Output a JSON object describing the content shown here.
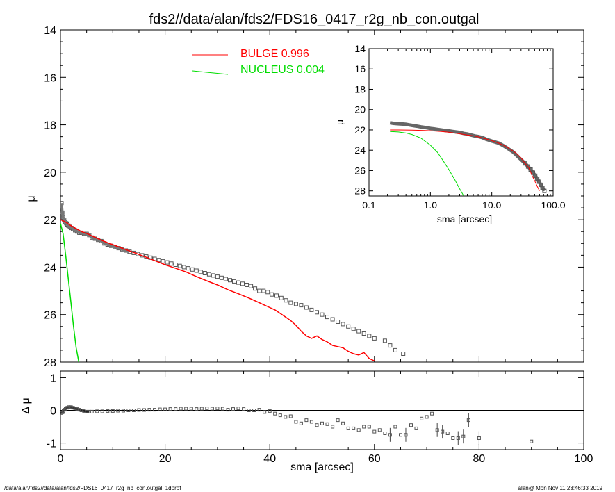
{
  "title": "fds2//data/alan/fds2/FDS16_0417_r2g_nb_con.outgal",
  "footer": {
    "left": "/data/alan/fds2//data/alan/fds2/FDS16_0417_r2g_nb_con.outgal_1dprof",
    "right": "alan@  Mon Nov 11 23:46:33 2019"
  },
  "colors": {
    "bulge": "#ff0000",
    "nucleus": "#00dd00",
    "data": "#555555",
    "axes": "#000000"
  },
  "legend": [
    {
      "label": "BULGE",
      "value": "0.996",
      "color": "#ff0000"
    },
    {
      "label": "NUCLEUS",
      "value": "0.004",
      "color": "#00dd00"
    }
  ],
  "chart_data": [
    {
      "id": "main",
      "type": "scatter",
      "xlabel": "",
      "ylabel": "μ",
      "xlim": [
        0,
        100
      ],
      "ylim": [
        28,
        14
      ],
      "yticks": [
        14,
        16,
        18,
        20,
        22,
        24,
        26,
        28
      ],
      "observed": {
        "x": [
          0.2,
          0.35,
          0.5,
          0.7,
          0.9,
          1.1,
          1.3,
          1.5,
          1.8,
          2.1,
          2.4,
          2.8,
          3.2,
          3.6,
          4.0,
          4.5,
          5.0,
          5.5,
          6.0,
          6.6,
          7.2,
          7.8,
          8.4,
          9.0,
          9.7,
          10.4,
          11.1,
          11.8,
          12.5,
          13.2,
          14.0,
          14.8,
          15.6,
          16.4,
          17.2,
          18.0,
          18.8,
          19.6,
          20.4,
          21.2,
          22.0,
          22.8,
          23.6,
          24.4,
          25.2,
          26.0,
          26.8,
          27.6,
          28.4,
          29.2,
          30.0,
          30.8,
          31.6,
          32.4,
          33.2,
          34.0,
          34.8,
          35.6,
          36.4,
          37.2,
          38.0,
          38.8,
          39.6,
          40.4,
          41.3,
          42.2,
          43.1,
          44.0,
          45.0,
          46.0,
          47.0,
          48.0,
          49.0,
          50.0,
          51.0,
          52.0,
          53.0,
          54.0,
          55.0,
          56.0,
          57.0,
          58.0,
          59.0,
          60.0,
          62.0,
          63.0,
          64.0,
          65.5
        ],
        "y": [
          21.3,
          21.7,
          21.9,
          22.0,
          22.1,
          22.15,
          22.2,
          22.25,
          22.3,
          22.35,
          22.4,
          22.45,
          22.5,
          22.55,
          22.55,
          22.6,
          22.6,
          22.65,
          22.75,
          22.8,
          22.85,
          22.9,
          23.0,
          23.05,
          23.1,
          23.15,
          23.2,
          23.25,
          23.3,
          23.35,
          23.4,
          23.45,
          23.5,
          23.55,
          23.6,
          23.65,
          23.7,
          23.75,
          23.8,
          23.85,
          23.9,
          23.95,
          24.0,
          24.05,
          24.1,
          24.15,
          24.2,
          24.25,
          24.3,
          24.35,
          24.4,
          24.45,
          24.5,
          24.55,
          24.6,
          24.65,
          24.7,
          24.75,
          24.8,
          24.9,
          25.0,
          25.0,
          25.05,
          25.15,
          25.2,
          25.3,
          25.4,
          25.5,
          25.55,
          25.6,
          25.7,
          25.8,
          25.9,
          26.0,
          26.1,
          26.2,
          26.3,
          26.4,
          26.5,
          26.6,
          26.7,
          26.8,
          26.9,
          27.0,
          27.1,
          27.3,
          27.5,
          27.65
        ]
      },
      "bulge_model": {
        "x": [
          0,
          1,
          2,
          3,
          4,
          5,
          6,
          7,
          8,
          9,
          10,
          12,
          14,
          16,
          18,
          20,
          22,
          24,
          26,
          28,
          30,
          32,
          34,
          36,
          38,
          40,
          41,
          42,
          43,
          44,
          45,
          46,
          47,
          48,
          49,
          50,
          51,
          52,
          53,
          54,
          55,
          56,
          57,
          58,
          59,
          60
        ],
        "y": [
          22.0,
          22.1,
          22.25,
          22.38,
          22.5,
          22.58,
          22.68,
          22.78,
          22.88,
          22.97,
          23.05,
          23.22,
          23.38,
          23.55,
          23.72,
          23.9,
          24.05,
          24.2,
          24.4,
          24.58,
          24.75,
          24.95,
          25.12,
          25.3,
          25.5,
          25.7,
          25.8,
          25.95,
          26.1,
          26.25,
          26.45,
          26.7,
          26.9,
          27.0,
          26.9,
          27.05,
          27.15,
          27.3,
          27.35,
          27.4,
          27.55,
          27.65,
          27.7,
          27.6,
          27.85,
          27.95
        ]
      },
      "nucleus_model": {
        "x": [
          0,
          0.5,
          1,
          1.5,
          2,
          2.5,
          3,
          3.5
        ],
        "y": [
          22.15,
          22.6,
          23.5,
          24.5,
          25.5,
          26.5,
          27.4,
          28.0
        ]
      }
    },
    {
      "id": "residual",
      "type": "scatter",
      "xlabel": "sma [arcsec]",
      "ylabel": "Δ μ",
      "xlim": [
        0,
        100
      ],
      "ylim": [
        -1.2,
        1.2
      ],
      "xticks": [
        0,
        20,
        40,
        60,
        80,
        100
      ],
      "yticks": [
        -1,
        0,
        1
      ],
      "x": [
        0.2,
        0.4,
        0.6,
        0.8,
        1.0,
        1.3,
        1.6,
        2.0,
        2.4,
        2.8,
        3.2,
        3.6,
        4.0,
        4.5,
        5.0,
        5.5,
        6.0,
        7.0,
        8.0,
        9.0,
        10,
        11,
        12,
        13,
        14,
        15,
        16,
        17,
        18,
        19,
        20,
        21,
        22,
        23,
        24,
        25,
        26,
        27,
        28,
        29,
        30,
        31,
        32,
        33,
        34,
        35,
        36,
        37,
        38,
        39,
        40,
        41,
        42,
        43,
        44,
        45,
        46,
        47,
        48,
        49,
        50,
        51,
        52,
        53,
        54,
        55,
        56,
        57,
        58,
        59,
        60,
        61,
        62,
        63,
        64,
        65,
        66,
        67,
        68,
        69,
        70,
        71,
        72,
        73,
        74,
        75,
        76,
        77,
        78,
        80,
        90
      ],
      "y": [
        -0.08,
        -0.06,
        -0.02,
        0.02,
        0.05,
        0.08,
        0.1,
        0.1,
        0.08,
        0.06,
        0.04,
        0.02,
        0.0,
        -0.02,
        -0.04,
        -0.04,
        -0.04,
        -0.03,
        -0.03,
        -0.02,
        -0.02,
        -0.01,
        -0.01,
        0.0,
        0.0,
        0.01,
        0.01,
        0.02,
        0.02,
        0.03,
        0.03,
        0.04,
        0.04,
        0.05,
        0.05,
        0.05,
        0.04,
        0.05,
        0.06,
        0.05,
        0.06,
        0.05,
        0.02,
        0.04,
        0.06,
        0.04,
        0.0,
        0.0,
        0.02,
        -0.05,
        -0.02,
        -0.1,
        -0.15,
        -0.2,
        -0.18,
        -0.35,
        -0.4,
        -0.3,
        -0.35,
        -0.45,
        -0.4,
        -0.42,
        -0.5,
        -0.3,
        -0.4,
        -0.55,
        -0.55,
        -0.6,
        -0.5,
        -0.5,
        -0.65,
        -0.6,
        -0.7,
        -0.75,
        -0.5,
        -0.75,
        -0.75,
        -0.45,
        -0.55,
        -0.25,
        -0.2,
        -0.1,
        -0.6,
        -0.65,
        -0.7,
        -0.85,
        -0.85,
        -0.8,
        -0.3,
        -0.85,
        -0.95
      ],
      "errors_indices": [
        73,
        76,
        82,
        83,
        86,
        87,
        88,
        89
      ]
    },
    {
      "id": "inset",
      "type": "scatter",
      "xscale": "log",
      "xlabel": "sma [arcsec]",
      "ylabel": "μ",
      "xlim": [
        0.1,
        100
      ],
      "ylim": [
        28.5,
        14
      ],
      "xticks": [
        0.1,
        1.0,
        10.0,
        100.0
      ],
      "xticklabels": [
        "0.1",
        "1.0",
        "10.0",
        "100.0"
      ],
      "yticks": [
        14,
        16,
        18,
        20,
        22,
        24,
        26,
        28
      ],
      "observed": {
        "x": [
          0.22,
          0.25,
          0.28,
          0.32,
          0.36,
          0.4,
          0.45,
          0.5,
          0.56,
          0.63,
          0.7,
          0.8,
          0.9,
          1.0,
          1.15,
          1.3,
          1.5,
          1.7,
          2.0,
          2.3,
          2.6,
          3.0,
          3.5,
          4.0,
          4.6,
          5.3,
          6.0,
          7.0,
          8.0,
          9.0,
          10,
          11.5,
          13,
          15,
          17,
          19,
          22,
          25,
          28,
          31,
          35,
          39,
          43,
          47,
          51,
          55,
          59,
          63,
          67,
          72
        ],
        "y": [
          21.3,
          21.35,
          21.38,
          21.4,
          21.42,
          21.45,
          21.5,
          21.55,
          21.6,
          21.65,
          21.7,
          21.75,
          21.8,
          21.85,
          21.9,
          21.95,
          22.0,
          22.05,
          22.1,
          22.15,
          22.2,
          22.25,
          22.35,
          22.4,
          22.5,
          22.6,
          22.65,
          22.75,
          22.9,
          23.0,
          23.1,
          23.2,
          23.3,
          23.5,
          23.7,
          23.9,
          24.15,
          24.45,
          24.75,
          25.0,
          25.3,
          25.6,
          25.9,
          26.2,
          26.5,
          26.8,
          27.1,
          27.4,
          27.7,
          28.0
        ]
      },
      "bulge_model": {
        "x": [
          0.22,
          0.3,
          0.5,
          0.8,
          1.0,
          1.5,
          2,
          3,
          4,
          5,
          6,
          8,
          10,
          13,
          16,
          20,
          25,
          30,
          35,
          40,
          45,
          50,
          55,
          60
        ],
        "y": [
          22.0,
          22.0,
          22.02,
          22.05,
          22.08,
          22.15,
          22.22,
          22.38,
          22.5,
          22.58,
          22.68,
          22.88,
          23.05,
          23.3,
          23.55,
          23.9,
          24.3,
          24.75,
          25.3,
          25.7,
          26.45,
          27.0,
          27.55,
          28.0
        ]
      },
      "nucleus_model": {
        "x": [
          0.22,
          0.3,
          0.4,
          0.5,
          0.7,
          1.0,
          1.3,
          1.6,
          2.0,
          2.5,
          3.0,
          3.5
        ],
        "y": [
          22.15,
          22.2,
          22.3,
          22.45,
          22.8,
          23.5,
          24.2,
          25.0,
          25.9,
          26.9,
          27.8,
          28.5
        ]
      }
    }
  ]
}
